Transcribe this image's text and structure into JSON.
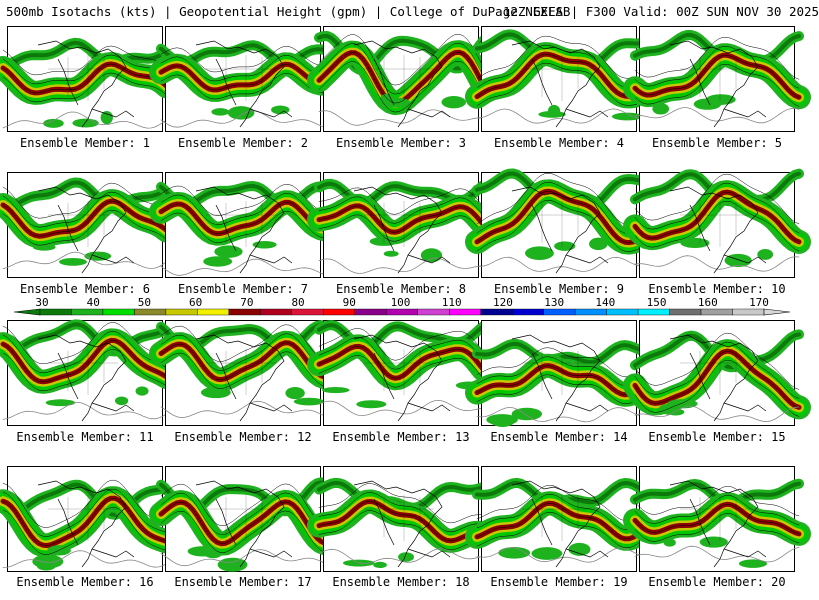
{
  "header": {
    "left": "500mb Isotachs (kts) | Geopotential Height (gpm) | College of DuPage NEXLAB",
    "right": "12Z GEFS | F300 Valid: 00Z SUN NOV 30 2025"
  },
  "caption_prefix": "Ensemble Member:",
  "members": [
    {
      "label": "Ensemble Member: 1"
    },
    {
      "label": "Ensemble Member: 2"
    },
    {
      "label": "Ensemble Member: 3"
    },
    {
      "label": "Ensemble Member: 4"
    },
    {
      "label": "Ensemble Member: 5"
    },
    {
      "label": "Ensemble Member: 6"
    },
    {
      "label": "Ensemble Member: 7"
    },
    {
      "label": "Ensemble Member: 8"
    },
    {
      "label": "Ensemble Member: 9"
    },
    {
      "label": "Ensemble Member: 10"
    },
    {
      "label": "Ensemble Member: 11"
    },
    {
      "label": "Ensemble Member: 12"
    },
    {
      "label": "Ensemble Member: 13"
    },
    {
      "label": "Ensemble Member: 14"
    },
    {
      "label": "Ensemble Member: 15"
    },
    {
      "label": "Ensemble Member: 16"
    },
    {
      "label": "Ensemble Member: 17"
    },
    {
      "label": "Ensemble Member: 18"
    },
    {
      "label": "Ensemble Member: 19"
    },
    {
      "label": "Ensemble Member: 20"
    }
  ],
  "colorbar": {
    "labels": [
      "30",
      "40",
      "50",
      "60",
      "70",
      "80",
      "90",
      "100",
      "110",
      "120",
      "130",
      "140",
      "150",
      "160",
      "170"
    ],
    "colors": [
      "#0b7a0b",
      "#1fb21f",
      "#00e000",
      "#8a8a2a",
      "#c8c800",
      "#f0f000",
      "#8b0000",
      "#b00020",
      "#dc143c",
      "#ff0000",
      "#8b008b",
      "#b000b0",
      "#d040d0",
      "#ff00ff",
      "#000090",
      "#0000d0",
      "#0060ff",
      "#0090ff",
      "#00c0ff",
      "#00f0ff",
      "#707070",
      "#a0a0a0",
      "#c8c8c8"
    ]
  }
}
